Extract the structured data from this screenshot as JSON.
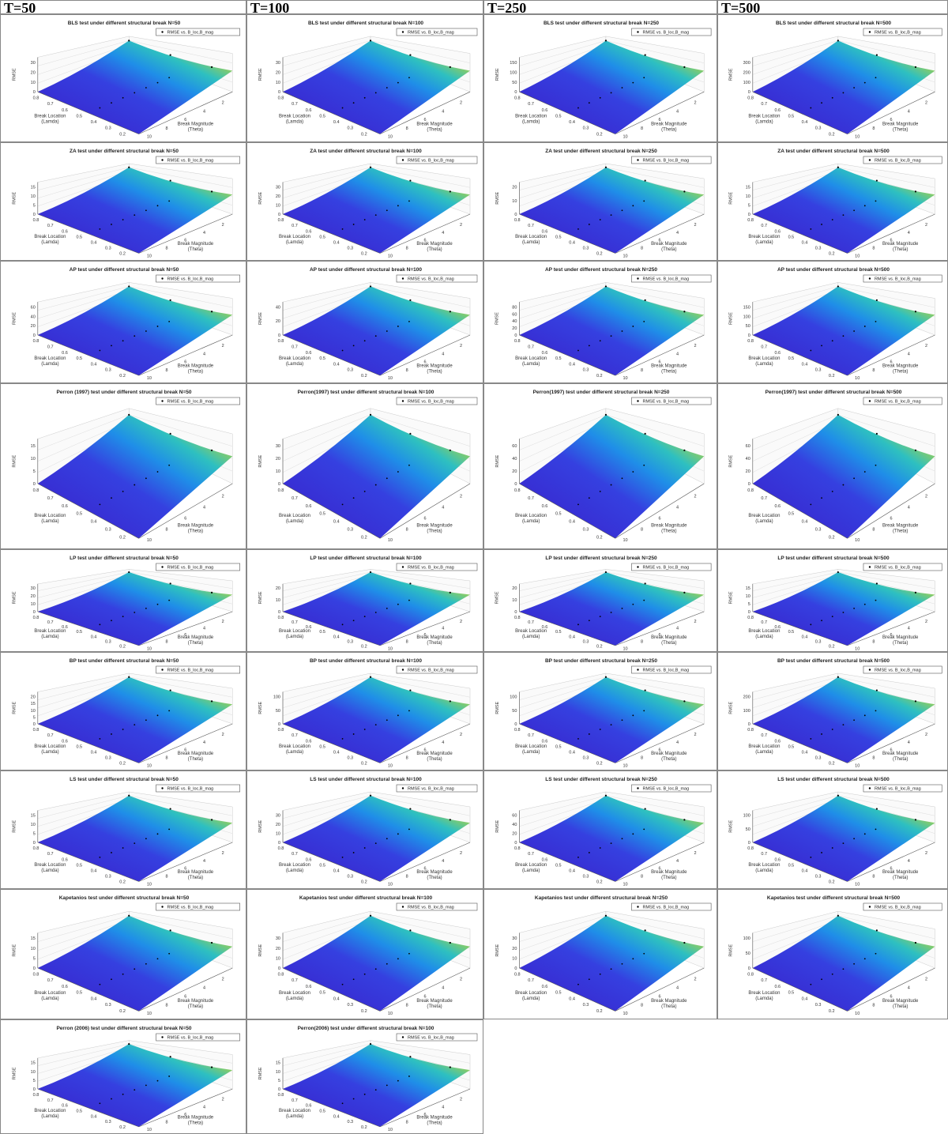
{
  "columns": [
    "T=50",
    "T=100",
    "T=250",
    "T=500"
  ],
  "legend": "RMSE vs. B_loc,B_mag",
  "z_label": "RMSE",
  "x_label": [
    "Break Location",
    "(Lamda)"
  ],
  "y_label": [
    "Break Magnitude",
    "(Theta)"
  ],
  "x_ticks": [
    0.8,
    0.7,
    0.6,
    0.5,
    0.4,
    0.3,
    0.2
  ],
  "y_ticks": [
    10,
    8,
    6,
    4,
    2
  ],
  "rows": [
    {
      "panels": [
        {
          "title": "BLS test under different structural break N=50",
          "z_ticks": [
            0,
            10,
            20,
            30
          ]
        },
        {
          "title": "BLS test under different structural break N=100",
          "z_ticks": [
            0,
            10,
            20,
            30
          ]
        },
        {
          "title": "BLS test under different structural break N=250",
          "z_ticks": [
            0,
            50,
            100,
            150
          ]
        },
        {
          "title": "BLS test under different structural break N=500",
          "z_ticks": [
            0,
            100,
            200,
            300
          ]
        }
      ]
    },
    {
      "panels": [
        {
          "title": "ZA test under different structural break N=50",
          "z_ticks": [
            0,
            5,
            10,
            15
          ]
        },
        {
          "title": "ZA test under different structural break N=100",
          "z_ticks": [
            0,
            10,
            20,
            30
          ]
        },
        {
          "title": "ZA test under different structural break N=250",
          "z_ticks": [
            0,
            10,
            20
          ]
        },
        {
          "title": "ZA test under different structural break N=500",
          "z_ticks": [
            0,
            5,
            10,
            15
          ]
        }
      ]
    },
    {
      "panels": [
        {
          "title": "AP test under different structural break N=50",
          "z_ticks": [
            0,
            20,
            40,
            60
          ]
        },
        {
          "title": "AP test under different structural break N=100",
          "z_ticks": [
            0,
            20,
            40
          ]
        },
        {
          "title": "AP test under different structural break N=250",
          "z_ticks": [
            0,
            20,
            40,
            60,
            80
          ]
        },
        {
          "title": "AP test under different structural break N=500",
          "z_ticks": [
            0,
            50,
            100,
            150
          ]
        }
      ]
    },
    {
      "panels": [
        {
          "title": "Perron (1997) test under different structural break N=50",
          "z_ticks": [
            0,
            5,
            10,
            15
          ]
        },
        {
          "title": "Perron(1997) test under different structural break N=100",
          "z_ticks": [
            0,
            10,
            20,
            30
          ]
        },
        {
          "title": "Perron(1997) test under different structural break N=250",
          "z_ticks": [
            0,
            20,
            40,
            60
          ]
        },
        {
          "title": "Perron(1997) test under different structural break N=500",
          "z_ticks": [
            0,
            20,
            40,
            60
          ]
        }
      ]
    },
    {
      "panels": [
        {
          "title": "LP test under different structural break N=50",
          "z_ticks": [
            0,
            10,
            20,
            30
          ]
        },
        {
          "title": "LP test under different structural break N=100",
          "z_ticks": [
            0,
            10,
            20
          ]
        },
        {
          "title": "LP test under different structural break N=250",
          "z_ticks": [
            0,
            10,
            20
          ]
        },
        {
          "title": "LP test under different structural break N=500",
          "z_ticks": [
            0,
            5,
            10,
            15
          ]
        }
      ]
    },
    {
      "panels": [
        {
          "title": "BP test under different structural break N=50",
          "z_ticks": [
            0,
            5,
            10,
            15,
            20
          ]
        },
        {
          "title": "BP test under different structural break N=100",
          "z_ticks": [
            0,
            50,
            100
          ]
        },
        {
          "title": "BP test under different structural break N=250",
          "z_ticks": [
            0,
            50,
            100
          ]
        },
        {
          "title": "BP test under different structural break N=500",
          "z_ticks": [
            0,
            100,
            200
          ]
        }
      ]
    },
    {
      "panels": [
        {
          "title": "LS test under different structural break N=50",
          "z_ticks": [
            0,
            5,
            10,
            15
          ]
        },
        {
          "title": "LS test under different structural break N=100",
          "z_ticks": [
            0,
            10,
            20,
            30
          ]
        },
        {
          "title": "LS test under different structural break N=250",
          "z_ticks": [
            0,
            20,
            40,
            60
          ]
        },
        {
          "title": "LS test under different structural break N=500",
          "z_ticks": [
            0,
            50,
            100
          ]
        }
      ]
    },
    {
      "panels": [
        {
          "title": "Kapetanios test under different structural break N=50",
          "z_ticks": [
            0,
            5,
            10,
            15
          ]
        },
        {
          "title": "Kapetanios test under different structural break N=100",
          "z_ticks": [
            0,
            10,
            20,
            30
          ]
        },
        {
          "title": "Kapetanios test under different structural break N=250",
          "z_ticks": [
            0,
            10,
            20,
            30
          ]
        },
        {
          "title": "Kapetanios test under different structural break N=500",
          "z_ticks": [
            0,
            50,
            100
          ]
        }
      ]
    },
    {
      "panels": [
        {
          "title": "Perron (2006) test under different structural break N=50",
          "z_ticks": [
            0,
            5,
            10,
            15
          ]
        },
        {
          "title": "Perron(2006) test under different structural break N=100",
          "z_ticks": [
            0,
            5,
            10,
            15
          ]
        }
      ]
    }
  ]
}
